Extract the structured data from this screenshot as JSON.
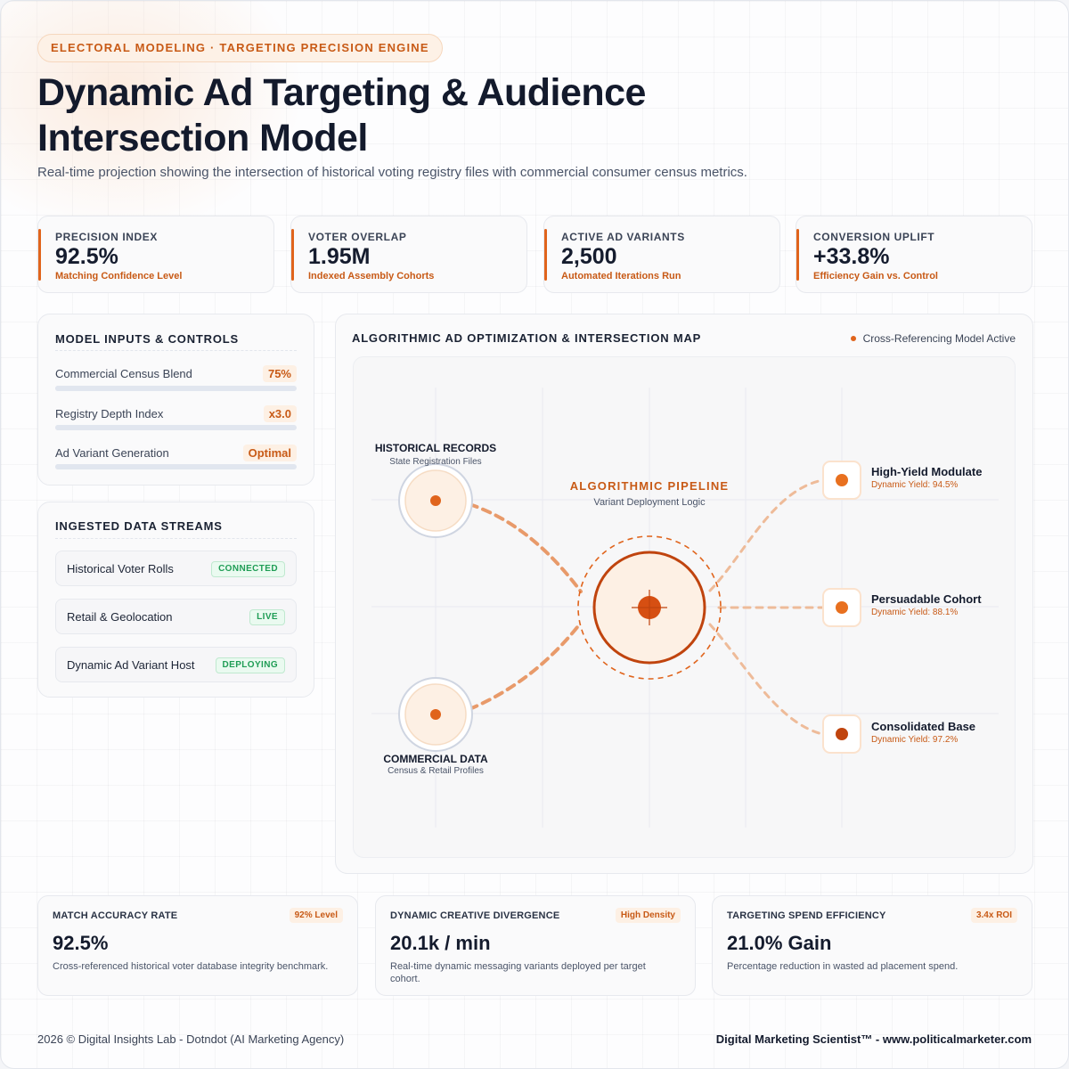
{
  "header": {
    "eyebrow": "ELECTORAL MODELING · TARGETING PRECISION ENGINE",
    "title": "Dynamic Ad Targeting & Audience Intersection Model",
    "subtitle": "Real-time projection showing the intersection of historical voting registry files with commercial consumer census metrics."
  },
  "kpis": [
    {
      "label": "PRECISION INDEX",
      "value": "92.5%",
      "sub": "Matching Confidence Level"
    },
    {
      "label": "VOTER OVERLAP",
      "value": "1.95M",
      "sub": "Indexed Assembly Cohorts"
    },
    {
      "label": "ACTIVE AD VARIANTS",
      "value": "2,500",
      "sub": "Automated Iterations Run"
    },
    {
      "label": "CONVERSION UPLIFT",
      "value": "+33.8%",
      "sub": "Efficiency Gain vs. Control"
    }
  ],
  "controls": {
    "title": "MODEL INPUTS & CONTROLS",
    "items": [
      {
        "label": "Commercial Census Blend",
        "value": "75%"
      },
      {
        "label": "Registry Depth Index",
        "value": "x3.0"
      },
      {
        "label": "Ad Variant Generation",
        "value": "Optimal"
      }
    ]
  },
  "streams": {
    "title": "INGESTED DATA STREAMS",
    "items": [
      {
        "name": "Historical Voter Rolls",
        "status": "CONNECTED"
      },
      {
        "name": "Retail & Geolocation",
        "status": "LIVE"
      },
      {
        "name": "Dynamic Ad Variant Host",
        "status": "DEPLOYING"
      }
    ]
  },
  "map": {
    "title": "ALGORITHMIC AD OPTIMIZATION & INTERSECTION MAP",
    "status": "Cross-Referencing Model Active",
    "inputs": [
      {
        "title": "HISTORICAL RECORDS",
        "sub": "State Registration Files"
      },
      {
        "title": "COMMERCIAL DATA",
        "sub": "Census & Retail Profiles"
      }
    ],
    "pipeline": {
      "title": "ALGORITHMIC PIPELINE",
      "sub": "Variant Deployment Logic"
    },
    "outputs": [
      {
        "name": "High-Yield Modulate",
        "yield": "Dynamic Yield: 94.5%"
      },
      {
        "name": "Persuadable Cohort",
        "yield": "Dynamic Yield: 88.1%"
      },
      {
        "name": "Consolidated Base",
        "yield": "Dynamic Yield: 97.2%"
      }
    ],
    "colors": {
      "accent": "#e0641c",
      "accent_dark": "#c0440e"
    }
  },
  "metrics": [
    {
      "title": "MATCH ACCURACY RATE",
      "badge": "92% Level",
      "value": "92.5%",
      "desc": "Cross-referenced historical voter database integrity benchmark."
    },
    {
      "title": "DYNAMIC CREATIVE DIVERGENCE",
      "badge": "High Density",
      "value": "20.1k / min",
      "desc": "Real-time dynamic messaging variants deployed per target cohort."
    },
    {
      "title": "TARGETING SPEND EFFICIENCY",
      "badge": "3.4x ROI",
      "value": "21.0% Gain",
      "desc": "Percentage reduction in wasted ad placement spend."
    }
  ],
  "footer": {
    "left": "2026 © Digital Insights Lab - Dotndot (AI Marketing Agency)",
    "right": "Digital Marketing Scientist™ - www.politicalmarketer.com"
  }
}
